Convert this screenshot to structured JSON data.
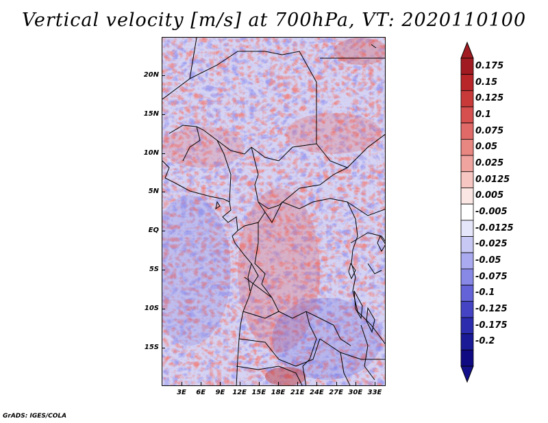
{
  "title": "Vertical velocity [m/s] at 700hPa, VT: 2020110100",
  "credit": "GrADS: IGES/COLA",
  "map": {
    "latitude_labels": [
      "20N",
      "15N",
      "10N",
      "5N",
      "EQ",
      "5S",
      "10S",
      "15S"
    ],
    "longitude_labels": [
      "3E",
      "6E",
      "9E",
      "12E",
      "15E",
      "18E",
      "21E",
      "24E",
      "27E",
      "30E",
      "33E"
    ],
    "field": "vertical velocity"
  },
  "colorbar": {
    "labels": [
      "0.175",
      "0.15",
      "0.125",
      "0.1",
      "0.075",
      "0.05",
      "0.025",
      "0.0125",
      "0.005",
      "-0.005",
      "-0.0125",
      "-0.025",
      "-0.05",
      "-0.075",
      "-0.1",
      "-0.125",
      "-0.175",
      "-0.2"
    ],
    "colors": [
      "#a01c22",
      "#b8262a",
      "#c83a3a",
      "#d65050",
      "#e06a68",
      "#e88682",
      "#f0a4a0",
      "#f6c6c2",
      "#fbe6e4",
      "#ffffff",
      "#e6e6fa",
      "#c8c8f4",
      "#aaaaf0",
      "#8888e6",
      "#6464d8",
      "#4444c4",
      "#2c2cae",
      "#1a1a96",
      "#100a82"
    ],
    "tip_top_color": "#a01c22",
    "tip_bottom_color": "#14108a"
  },
  "colors": {
    "positive": "#d64a4a",
    "negative": "#5a5ad8",
    "border": "#000000"
  }
}
